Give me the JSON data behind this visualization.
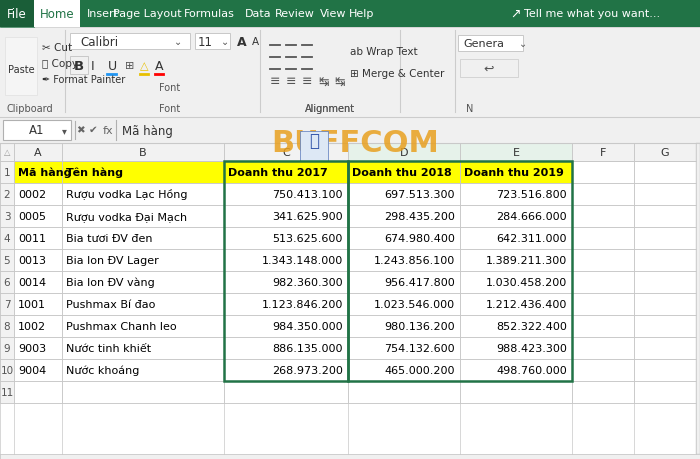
{
  "tabs": [
    "File",
    "Home",
    "Insert",
    "Page Layout",
    "Formulas",
    "Data",
    "Review",
    "View",
    "Help"
  ],
  "formula_bar_text": "Mã hàng",
  "cell_ref": "A1",
  "watermark_text": "BUFFCOM",
  "col_letters": [
    "A",
    "B",
    "C",
    "D",
    "E",
    "F",
    "G"
  ],
  "headers": [
    "Mã hàng",
    "Tên hàng",
    "Doanh thu 2017",
    "Doanh thu 2018",
    "Doanh thu 2019"
  ],
  "data": [
    [
      "0002",
      "Rượu vodka Lạc Hồng",
      "750.413.100",
      "697.513.300",
      "723.516.800"
    ],
    [
      "0005",
      "Rượu vodka Đại Mạch",
      "341.625.900",
      "298.435.200",
      "284.666.000"
    ],
    [
      "0011",
      "Bia tươi ĐV đen",
      "513.625.600",
      "674.980.400",
      "642.311.000"
    ],
    [
      "0013",
      "Bia lon ĐV Lager",
      "1.343.148.000",
      "1.243.856.100",
      "1.389.211.300"
    ],
    [
      "0014",
      "Bia lon ĐV vàng",
      "982.360.300",
      "956.417.800",
      "1.030.458.200"
    ],
    [
      "1001",
      "Pushmax Bí đao",
      "1.123.846.200",
      "1.023.546.000",
      "1.212.436.400"
    ],
    [
      "1002",
      "Pushmax Chanh leo",
      "984.350.000",
      "980.136.200",
      "852.322.400"
    ],
    [
      "9003",
      "Nước tinh khiết",
      "886.135.000",
      "754.132.600",
      "988.423.300"
    ],
    [
      "9004",
      "Nước khoáng",
      "268.973.200",
      "465.000.200",
      "498.760.000"
    ]
  ],
  "green_dark": "#1e7145",
  "green_mid": "#217346",
  "yellow_hdr": "#ffff00",
  "grid_color": "#c8c8c8",
  "row_hdr_bg": "#f2f2f2",
  "col_hdr_bg": "#f2f2f2",
  "white": "#ffffff",
  "ribbon_bg": "#f0f0f0",
  "tab_bar_green": "#217346",
  "title_bar_green": "#1d6b43"
}
